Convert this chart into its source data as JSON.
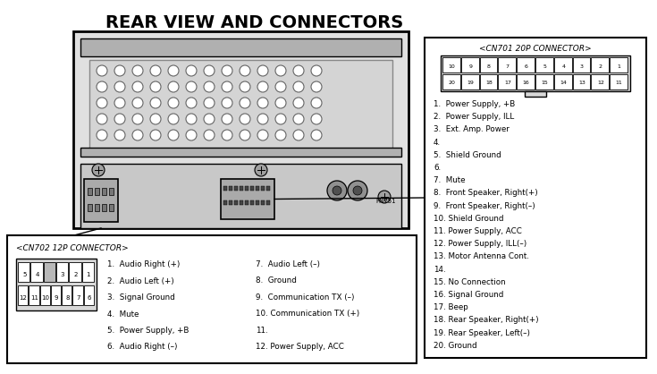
{
  "title": "REAR VIEW AND CONNECTORS",
  "bg_color": "#ffffff",
  "title_fontsize": 14,
  "cn701_title": "<CN701 20P CONNECTOR>",
  "cn701_pins_row1": [
    "10",
    "9",
    "8",
    "7",
    "6",
    "5",
    "4",
    "3",
    "2",
    "1"
  ],
  "cn701_pins_row2": [
    "20",
    "19",
    "18",
    "17",
    "16",
    "15",
    "14",
    "13",
    "12",
    "11"
  ],
  "cn701_items": [
    "1.  Power Supply, +B",
    "2.  Power Supply, ILL",
    "3.  Ext. Amp. Power",
    "4.",
    "5.  Shield Ground",
    "6.",
    "7.  Mute",
    "8.  Front Speaker, Right(+)",
    "9.  Front Speaker, Right(–)",
    "10. Shield Ground",
    "11. Power Supply, ACC",
    "12. Power Supply, ILL(–)",
    "13. Motor Antenna Cont.",
    "14.",
    "15. No Connection",
    "16. Signal Ground",
    "17. Beep",
    "18. Rear Speaker, Right(+)",
    "19. Rear Speaker, Left(–)",
    "20. Ground"
  ],
  "cn702_title": "<CN702 12P CONNECTOR>",
  "cn702_pins_row1": [
    "5",
    "4",
    "",
    "3",
    "2",
    "1"
  ],
  "cn702_pins_row2": [
    "12",
    "11",
    "10",
    "9",
    "8",
    "7",
    "6"
  ],
  "cn702_col1": [
    "1.  Audio Right (+)",
    "2.  Audio Left (+)",
    "3.  Signal Ground",
    "4.  Mute",
    "5.  Power Supply, +B",
    "6.  Audio Right (–)"
  ],
  "cn702_col2": [
    "7.  Audio Left (–)",
    "8.  Ground",
    "9.  Communication TX (–)",
    "10. Communication TX (+)",
    "11.",
    "12. Power Supply, ACC"
  ],
  "text_color": "#000000"
}
